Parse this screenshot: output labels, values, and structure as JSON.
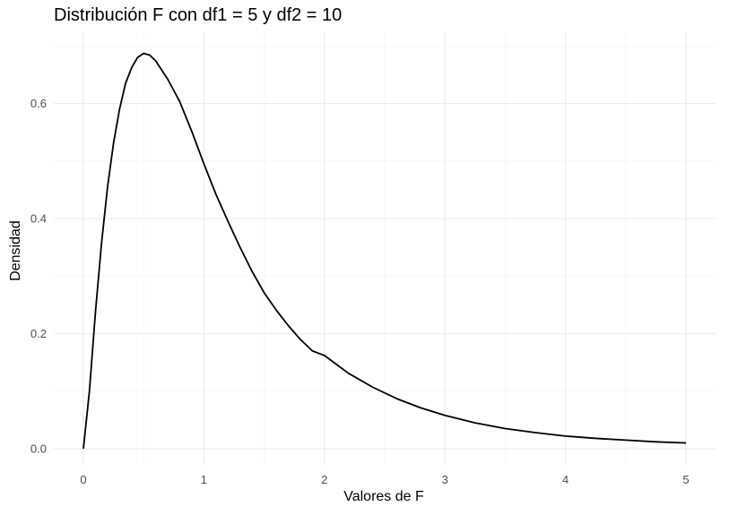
{
  "chart_data": {
    "type": "line",
    "title": "Distribución F con df1 = 5 y df2 = 10",
    "xlabel": "Valores de F",
    "ylabel": "Densidad",
    "xlim": [
      0,
      5
    ],
    "ylim": [
      0,
      0.7
    ],
    "x_ticks": [
      0,
      1,
      2,
      3,
      4,
      5
    ],
    "x_tick_labels": [
      "0",
      "1",
      "2",
      "3",
      "4",
      "5"
    ],
    "y_ticks": [
      0.0,
      0.2,
      0.4,
      0.6
    ],
    "y_tick_labels": [
      "0.0",
      "0.2",
      "0.4",
      "0.6"
    ],
    "grid": true,
    "legend": "none",
    "series": [
      {
        "color": "#000000",
        "x": [
          0,
          0.05,
          0.1,
          0.15,
          0.2,
          0.25,
          0.3,
          0.35,
          0.4,
          0.45,
          0.5,
          0.55,
          0.6,
          0.7,
          0.8,
          0.9,
          1.0,
          1.1,
          1.2,
          1.3,
          1.4,
          1.5,
          1.6,
          1.7,
          1.8,
          1.9,
          2.0,
          2.2,
          2.4,
          2.6,
          2.8,
          3.0,
          3.25,
          3.5,
          3.75,
          4.0,
          4.25,
          4.5,
          4.75,
          5.0
        ],
        "y": [
          0.0,
          0.1,
          0.237,
          0.356,
          0.454,
          0.531,
          0.59,
          0.635,
          0.662,
          0.68,
          0.687,
          0.684,
          0.674,
          0.642,
          0.603,
          0.551,
          0.495,
          0.442,
          0.395,
          0.35,
          0.308,
          0.271,
          0.241,
          0.214,
          0.19,
          0.17,
          0.162,
          0.131,
          0.107,
          0.087,
          0.071,
          0.058,
          0.045,
          0.035,
          0.028,
          0.022,
          0.018,
          0.015,
          0.012,
          0.01
        ]
      }
    ]
  }
}
